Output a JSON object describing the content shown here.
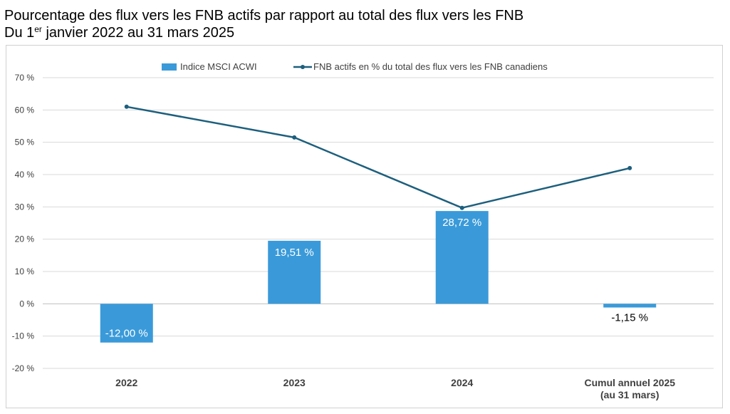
{
  "title": {
    "line1": "Pourcentage des flux vers les FNB actifs par rapport au total des flux vers les FNB",
    "line2_prefix": "Du 1",
    "line2_sup": "er",
    "line2_suffix": " janvier 2022 au 31 mars 2025"
  },
  "chart_data": {
    "type": "bar",
    "title": "Pourcentage des flux vers les FNB actifs par rapport au total des flux vers les FNB — Du 1er janvier 2022 au 31 mars 2025",
    "categories": [
      [
        "2022"
      ],
      [
        "2023"
      ],
      [
        "2024"
      ],
      [
        "Cumul annuel 2025",
        "(au 31 mars)"
      ]
    ],
    "ylim": [
      -20,
      70
    ],
    "yticks": [
      -20,
      -10,
      0,
      10,
      20,
      30,
      40,
      50,
      60,
      70
    ],
    "ytick_labels": [
      "-20 %",
      "-10 %",
      "0 %",
      "10 %",
      "20 %",
      "30 %",
      "40 %",
      "50 %",
      "60 %",
      "70 %"
    ],
    "grid": true,
    "legend_position": "top-center",
    "series": [
      {
        "name": "Indice MSCI ACWI",
        "kind": "bar",
        "color": "#3a9ad9",
        "values": [
          -12.0,
          19.51,
          28.72,
          -1.15
        ],
        "labels": [
          "-12,00 %",
          "19,51 %",
          "28,72 %",
          "-1,15 %"
        ]
      },
      {
        "name": "FNB actifs en % du total des flux vers les FNB canadiens",
        "kind": "line",
        "color": "#1d5f7d",
        "values": [
          61.0,
          51.5,
          29.7,
          42.0
        ]
      }
    ]
  }
}
